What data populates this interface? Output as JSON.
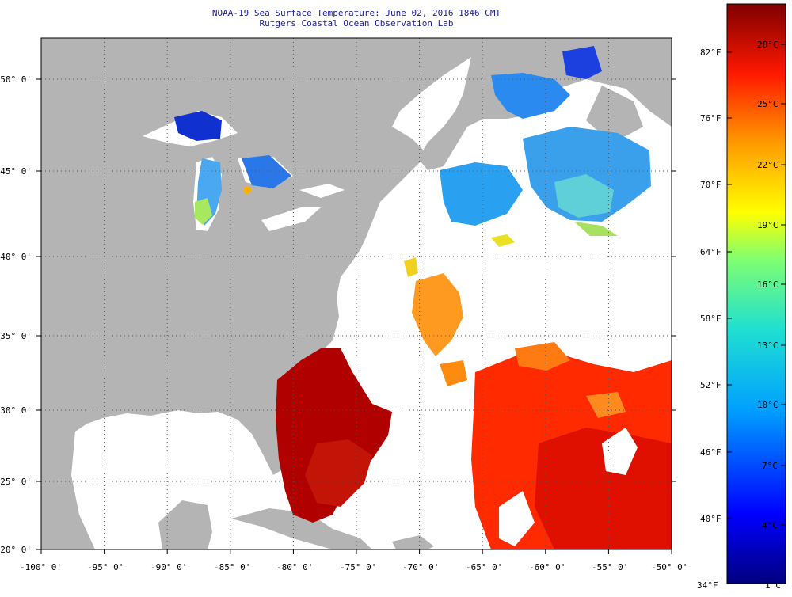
{
  "title": {
    "line1": "NOAA-19 Sea Surface Temperature:  June 02, 2016 1846 GMT",
    "line2": "Rutgers Coastal Ocean Observation Lab"
  },
  "axes": {
    "lat_labels": [
      "50° 0'",
      "45° 0'",
      "40° 0'",
      "35° 0'",
      "30° 0'",
      "25° 0'",
      "20° 0'"
    ],
    "lon_labels": [
      "-100° 0'",
      "-95° 0'",
      "-90° 0'",
      "-85° 0'",
      "-80° 0'",
      "-75° 0'",
      "-70° 0'",
      "-65° 0'",
      "-60° 0'",
      "-55° 0'",
      "-50° 0'"
    ],
    "lon_range": [
      -100,
      -50
    ],
    "lat_range": [
      20,
      52.5
    ]
  },
  "colorbar": {
    "fahrenheit": [
      "82°F",
      "76°F",
      "70°F",
      "64°F",
      "58°F",
      "52°F",
      "46°F",
      "40°F",
      "34°F"
    ],
    "celsius": [
      "28°C",
      "25°C",
      "22°C",
      "19°C",
      "16°C",
      "13°C",
      "10°C",
      "7°C",
      "4°C",
      "1°C"
    ]
  },
  "colors": {
    "land": "#b4b4b4",
    "cloud": "#ffffff",
    "title": "#1a1aa0"
  }
}
